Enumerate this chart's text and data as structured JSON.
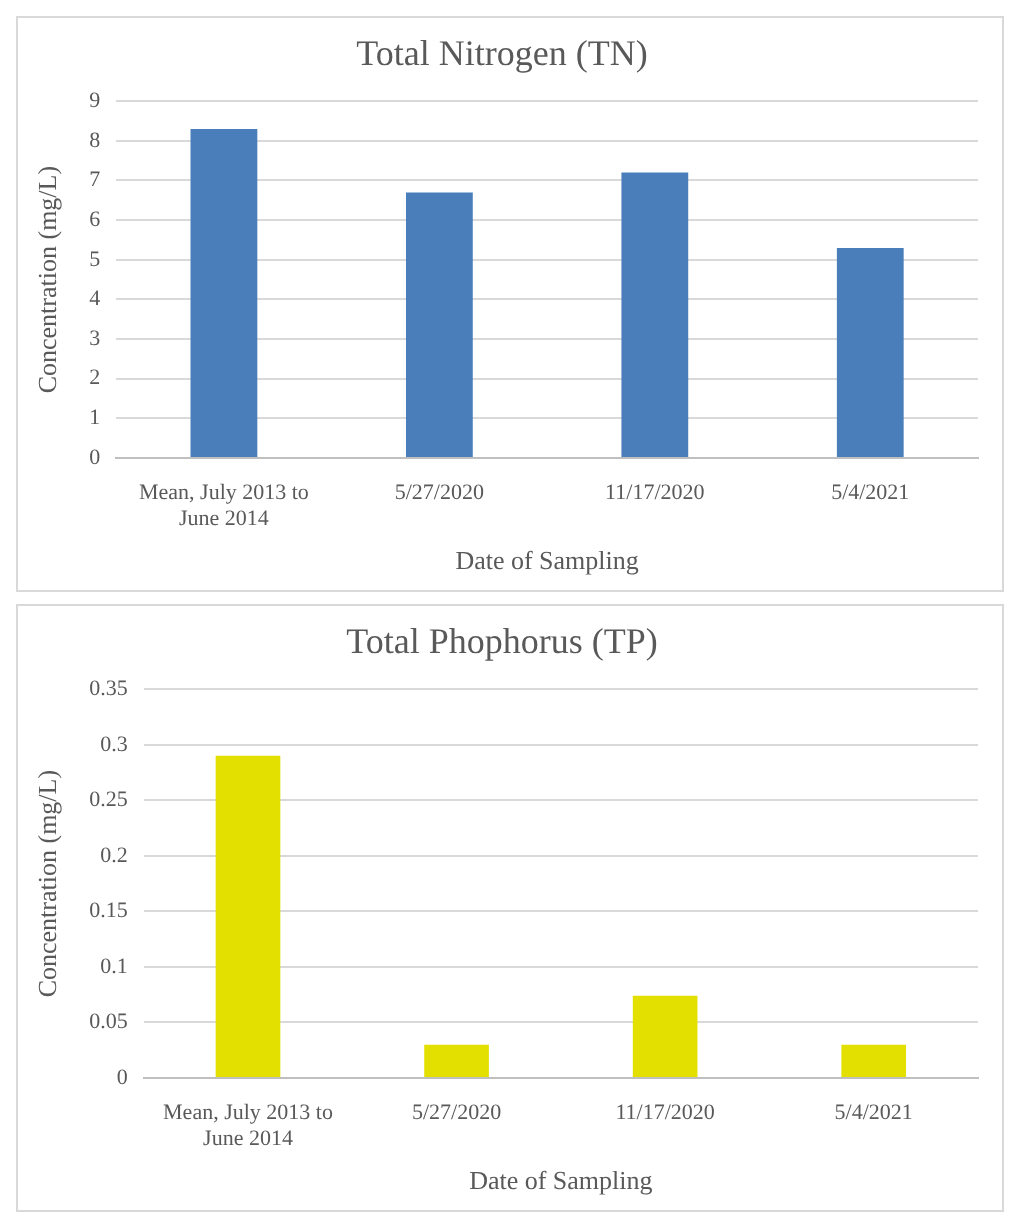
{
  "chart_data": [
    {
      "type": "bar",
      "title": "Total Nitrogen (TN)",
      "xlabel": "Date of Sampling",
      "ylabel": "Concentration (mg/L)",
      "categories": [
        "Mean, July 2013 to June 2014",
        "5/27/2020",
        "11/17/2020",
        "5/4/2021"
      ],
      "values": [
        8.3,
        6.7,
        7.2,
        5.3
      ],
      "color": "#4a7ebb",
      "ylim": [
        0,
        9
      ],
      "yticks": [
        0,
        1,
        2,
        3,
        4,
        5,
        6,
        7,
        8,
        9
      ],
      "grid": "y",
      "legend": false
    },
    {
      "type": "bar",
      "title": "Total Phophorus (TP)",
      "xlabel": "Date of Sampling",
      "ylabel": "Concentration (mg/L)",
      "categories": [
        "Mean, July 2013 to June 2014",
        "5/27/2020",
        "11/17/2020",
        "5/4/2021"
      ],
      "values": [
        0.29,
        0.03,
        0.074,
        0.03
      ],
      "color": "#e3e000",
      "ylim": [
        0,
        0.35
      ],
      "yticks": [
        0,
        0.05,
        0.1,
        0.15,
        0.2,
        0.25,
        0.3,
        0.35
      ],
      "grid": "y",
      "legend": false
    }
  ]
}
